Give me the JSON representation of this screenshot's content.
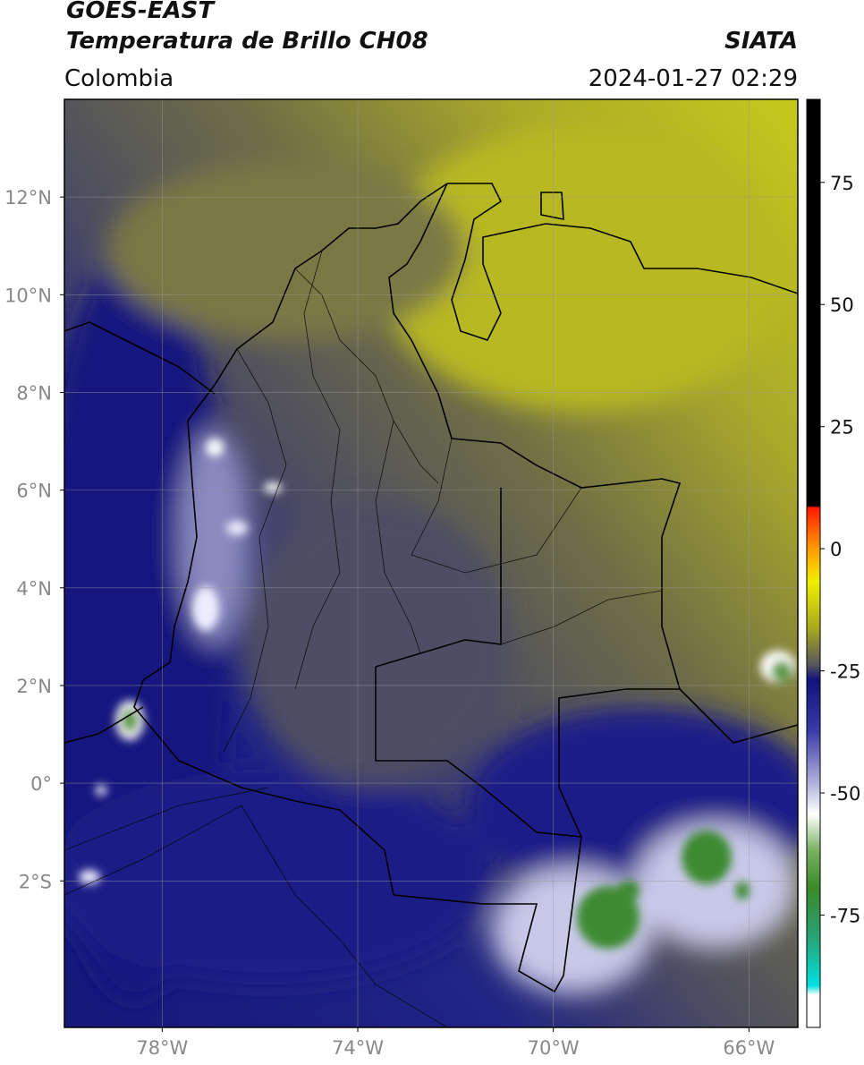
{
  "header": {
    "title": "GOES-EAST",
    "subtitle": "Temperatura de Brillo CH08",
    "source": "SIATA",
    "region": "Colombia",
    "timestamp": "2024-01-27 02:29"
  },
  "map": {
    "xlim": [
      -80,
      -65
    ],
    "ylim": [
      -5,
      14
    ],
    "xticks": [
      {
        "value": -78,
        "label": "78°W"
      },
      {
        "value": -74,
        "label": "74°W"
      },
      {
        "value": -70,
        "label": "70°W"
      },
      {
        "value": -66,
        "label": "66°W"
      }
    ],
    "yticks": [
      {
        "value": 12,
        "label": "12°N"
      },
      {
        "value": 10,
        "label": "10°N"
      },
      {
        "value": 8,
        "label": "8°N"
      },
      {
        "value": 6,
        "label": "6°N"
      },
      {
        "value": 4,
        "label": "4°N"
      },
      {
        "value": 2,
        "label": "2°N"
      },
      {
        "value": 0,
        "label": "0°"
      },
      {
        "value": -2,
        "label": "2°S"
      }
    ],
    "grid": true
  },
  "colorbar": {
    "ylim": [
      -98,
      92
    ],
    "yticks": [
      -75,
      -50,
      -25,
      0,
      25,
      50,
      75
    ]
  }
}
